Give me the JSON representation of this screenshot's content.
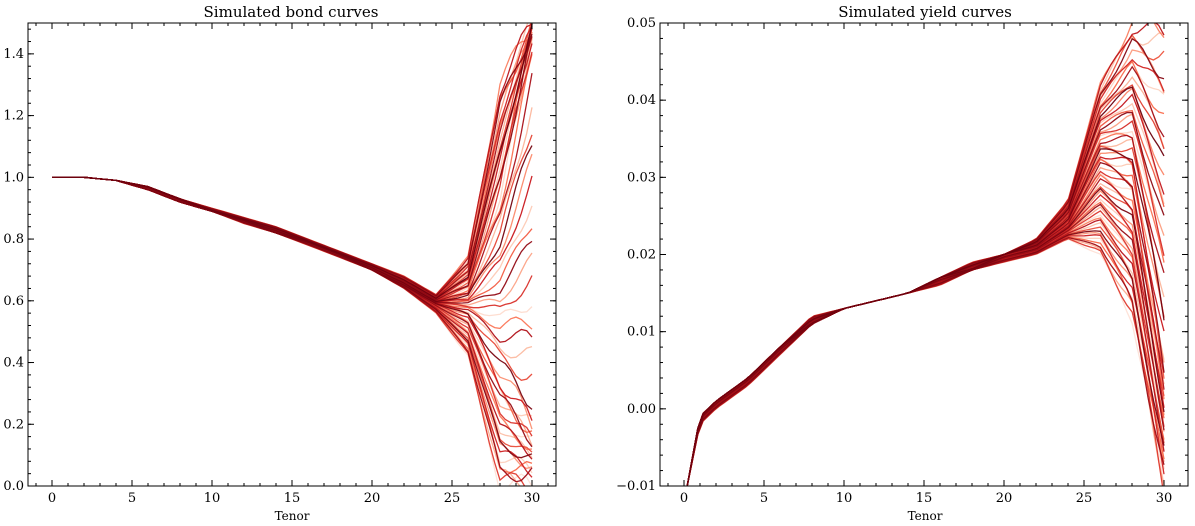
{
  "chart_data": [
    {
      "type": "line",
      "title": "Simulated bond curves",
      "xlabel": "Tenor",
      "ylabel": "",
      "xlim": [
        -1.5,
        31.5
      ],
      "ylim": [
        0.0,
        1.5
      ],
      "xticks": [
        "0",
        "5",
        "10",
        "15",
        "20",
        "25",
        "30"
      ],
      "xtick_values": [
        0,
        5,
        10,
        15,
        20,
        25,
        30
      ],
      "yticks": [
        "0.0",
        "0.2",
        "0.4",
        "0.6",
        "0.8",
        "1.0",
        "1.2",
        "1.4"
      ],
      "ytick_values": [
        0.0,
        0.2,
        0.4,
        0.6,
        0.8,
        1.0,
        1.2,
        1.4
      ],
      "grid": false,
      "colormap": "Reds",
      "palette": [
        "#fff5f0",
        "#fcbba1",
        "#fb6a4a",
        "#cb181d",
        "#67000d"
      ],
      "series_count": 60,
      "x": [
        0,
        2,
        4,
        6,
        8,
        10,
        12,
        14,
        16,
        18,
        20,
        22,
        24,
        26,
        28,
        30
      ],
      "series": [
        {
          "values": [
            1.0,
            1.0,
            0.99,
            0.96,
            0.92,
            0.89,
            0.85,
            0.82,
            0.78,
            0.74,
            0.7,
            0.64,
            0.56,
            0.42,
            0.0,
            0.0
          ]
        },
        {
          "values": [
            1.0,
            1.0,
            0.99,
            0.96,
            0.92,
            0.89,
            0.86,
            0.82,
            0.79,
            0.75,
            0.7,
            0.65,
            0.59,
            0.55,
            0.35,
            0.2
          ]
        },
        {
          "values": [
            1.0,
            1.0,
            0.99,
            0.97,
            0.93,
            0.89,
            0.86,
            0.83,
            0.79,
            0.75,
            0.71,
            0.66,
            0.6,
            0.64,
            0.95,
            1.45
          ]
        },
        {
          "values": [
            1.0,
            1.0,
            0.99,
            0.97,
            0.93,
            0.9,
            0.87,
            0.84,
            0.8,
            0.76,
            0.72,
            0.68,
            0.62,
            0.74,
            1.3,
            1.5
          ]
        }
      ]
    },
    {
      "type": "line",
      "title": "Simulated yield curves",
      "xlabel": "Tenor",
      "ylabel": "",
      "xlim": [
        -1.5,
        31.5
      ],
      "ylim": [
        -0.01,
        0.05
      ],
      "xticks": [
        "0",
        "5",
        "10",
        "15",
        "20",
        "25",
        "30"
      ],
      "xtick_values": [
        0,
        5,
        10,
        15,
        20,
        25,
        30
      ],
      "yticks": [
        "−0.01",
        "0.00",
        "0.01",
        "0.02",
        "0.03",
        "0.04",
        "0.05"
      ],
      "ytick_values": [
        -0.01,
        0.0,
        0.01,
        0.02,
        0.03,
        0.04,
        0.05
      ],
      "grid": false,
      "colormap": "Reds",
      "palette": [
        "#fff5f0",
        "#fcbba1",
        "#fb6a4a",
        "#cb181d",
        "#67000d"
      ],
      "series_count": 60,
      "x": [
        0.2,
        1,
        2,
        4,
        6,
        8,
        10,
        12,
        14,
        16,
        18,
        20,
        22,
        24,
        26,
        28,
        30
      ],
      "series": [
        {
          "values": [
            -0.01,
            -0.002,
            0.0,
            0.003,
            0.007,
            0.011,
            0.013,
            0.014,
            0.015,
            0.016,
            0.018,
            0.019,
            0.02,
            0.022,
            0.02,
            0.012,
            -0.01
          ]
        },
        {
          "values": [
            -0.01,
            -0.001,
            0.001,
            0.004,
            0.008,
            0.011,
            0.013,
            0.014,
            0.015,
            0.017,
            0.018,
            0.02,
            0.021,
            0.024,
            0.032,
            0.03,
            0.005
          ]
        },
        {
          "values": [
            -0.01,
            -0.001,
            0.001,
            0.004,
            0.008,
            0.012,
            0.013,
            0.014,
            0.015,
            0.017,
            0.019,
            0.02,
            0.022,
            0.027,
            0.042,
            0.05,
            0.05
          ]
        }
      ]
    }
  ]
}
